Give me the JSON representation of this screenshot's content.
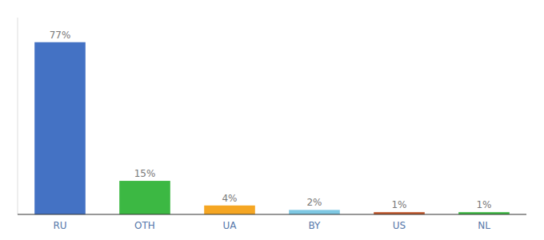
{
  "chart_data": {
    "type": "bar",
    "categories": [
      "RU",
      "OTH",
      "UA",
      "BY",
      "US",
      "NL"
    ],
    "values": [
      77,
      15,
      4,
      2,
      1,
      1
    ],
    "value_labels": [
      "77%",
      "15%",
      "4%",
      "2%",
      "1%",
      "1%"
    ],
    "colors": [
      "#4472C4",
      "#3CB843",
      "#F5A623",
      "#7EC8E3",
      "#C0562B",
      "#3CB843"
    ],
    "ylim": [
      0,
      88
    ],
    "data_labels": true,
    "tick_labels": "x",
    "grid": false
  }
}
